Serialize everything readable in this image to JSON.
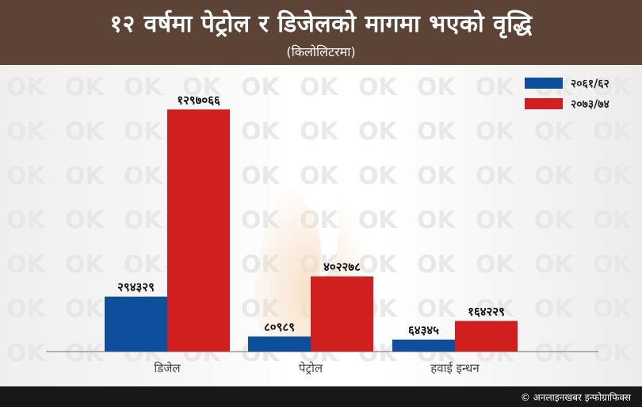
{
  "header": {
    "title": "१२ वर्षमा पेट्रोल र डिजेलको मागमा भएको वृद्धि",
    "subtitle": "(किलोलिटरमा)"
  },
  "footer": {
    "credit": "© अनलाइनखबर इन्फोग्राफिक्स"
  },
  "watermark": {
    "logo_text": "OK"
  },
  "colors": {
    "header_bg": "#5b4335",
    "series_1": "#0d4f9a",
    "series_2": "#d11f1f"
  },
  "chart_data": {
    "type": "bar",
    "title": "१२ वर्षमा पेट्रोल र डिजेलको मागमा भएको वृद्धि",
    "subtitle": "(किलोलिटरमा)",
    "categories": [
      "डिजेल",
      "पेट्रोल",
      "हवाई इन्धन"
    ],
    "series": [
      {
        "name": "२०६१/६२",
        "color": "#0d4f9a",
        "values": [
          294329,
          80989,
          64345
        ],
        "value_labels": [
          "२९४३२९",
          "८०९८९",
          "६४३४५"
        ]
      },
      {
        "name": "२०७३/७४",
        "color": "#d11f1f",
        "values": [
          1297066,
          402278,
          164229
        ],
        "value_labels": [
          "१२९७०६६",
          "४०२२७८",
          "१६४२२९"
        ]
      }
    ],
    "ylim": [
      0,
      1400000
    ],
    "grid": false,
    "legend_position": "top-right",
    "xlabel": "",
    "ylabel": ""
  }
}
